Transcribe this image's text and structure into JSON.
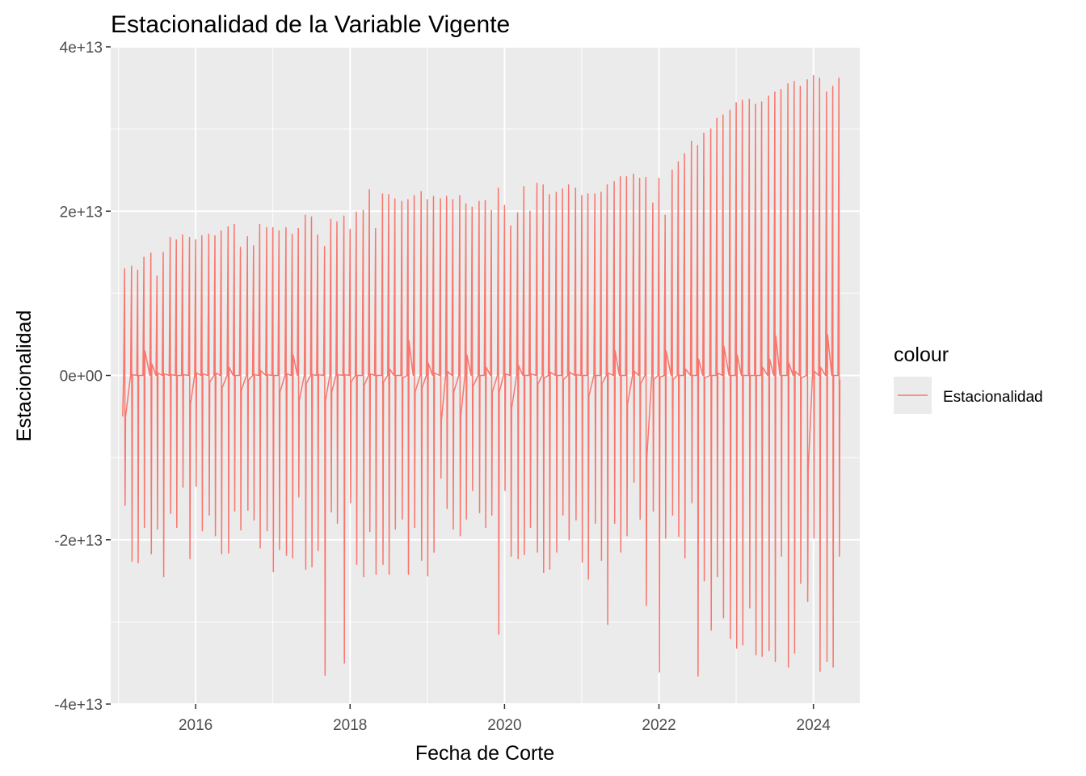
{
  "chart_data": {
    "type": "line",
    "title": "Estacionalidad de la Variable Vigente",
    "xlabel": "Fecha de Corte",
    "ylabel": "Estacionalidad",
    "xlim": [
      2014.9,
      2024.6
    ],
    "ylim": [
      -40000000000000.0,
      40000000000000.0
    ],
    "x_ticks": [
      {
        "value": 2016,
        "label": "2016"
      },
      {
        "value": 2018,
        "label": "2018"
      },
      {
        "value": 2020,
        "label": "2020"
      },
      {
        "value": 2022,
        "label": "2022"
      },
      {
        "value": 2024,
        "label": "2024"
      }
    ],
    "y_ticks": [
      {
        "value": 40000000000000.0,
        "label": "4e+13"
      },
      {
        "value": 20000000000000.0,
        "label": "2e+13"
      },
      {
        "value": 0,
        "label": "0e+00"
      },
      {
        "value": -20000000000000.0,
        "label": "-2e+13"
      },
      {
        "value": -40000000000000.0,
        "label": "-4e+13"
      }
    ],
    "grid": true,
    "legend": {
      "title": "colour",
      "position": "right"
    },
    "series": [
      {
        "name": "Estacionalidad",
        "color": "#F8766D",
        "months": [
          {
            "x": 2015.08,
            "hi": 13.0,
            "lo": -15.8,
            "close": -5.0
          },
          {
            "x": 2015.17,
            "hi": 13.3,
            "lo": -22.6,
            "close": 0.1
          },
          {
            "x": 2015.25,
            "hi": 12.8,
            "lo": -22.8,
            "close": 0.0
          },
          {
            "x": 2015.33,
            "hi": 14.4,
            "lo": -18.5,
            "close": 3.0
          },
          {
            "x": 2015.42,
            "hi": 14.9,
            "lo": -21.7,
            "close": 1.4
          },
          {
            "x": 2015.5,
            "hi": 12.1,
            "lo": -18.7,
            "close": 0.3
          },
          {
            "x": 2015.58,
            "hi": 15.0,
            "lo": -24.5,
            "close": 0.2
          },
          {
            "x": 2015.67,
            "hi": 16.8,
            "lo": -16.8,
            "close": 0.1
          },
          {
            "x": 2015.75,
            "hi": 16.5,
            "lo": -18.5,
            "close": 0.0
          },
          {
            "x": 2015.83,
            "hi": 17.1,
            "lo": -13.6,
            "close": 0.1
          },
          {
            "x": 2015.92,
            "hi": 16.8,
            "lo": -22.3,
            "close": -3.5
          },
          {
            "x": 2016.0,
            "hi": 16.5,
            "lo": -13.5,
            "close": 0.3
          },
          {
            "x": 2016.08,
            "hi": 17.0,
            "lo": -18.9,
            "close": 0.2
          },
          {
            "x": 2016.17,
            "hi": 17.2,
            "lo": -17.0,
            "close": -0.8
          },
          {
            "x": 2016.25,
            "hi": 17.0,
            "lo": -19.5,
            "close": 0.3
          },
          {
            "x": 2016.33,
            "hi": 17.6,
            "lo": -21.7,
            "close": -1.5
          },
          {
            "x": 2016.42,
            "hi": 18.1,
            "lo": -21.6,
            "close": 1.0
          },
          {
            "x": 2016.5,
            "hi": 18.4,
            "lo": -16.5,
            "close": 0.0
          },
          {
            "x": 2016.58,
            "hi": 15.6,
            "lo": -18.8,
            "close": -1.8
          },
          {
            "x": 2016.67,
            "hi": 16.9,
            "lo": -16.4,
            "close": -0.6
          },
          {
            "x": 2016.75,
            "hi": 15.8,
            "lo": -17.6,
            "close": 0.1
          },
          {
            "x": 2016.83,
            "hi": 18.4,
            "lo": -21.0,
            "close": 0.6
          },
          {
            "x": 2016.92,
            "hi": 18.0,
            "lo": -18.9,
            "close": 0.1
          },
          {
            "x": 2017.0,
            "hi": 18.0,
            "lo": -23.9,
            "close": 0.0
          },
          {
            "x": 2017.08,
            "hi": 17.6,
            "lo": -21.2,
            "close": -2.0
          },
          {
            "x": 2017.17,
            "hi": 18.0,
            "lo": -21.9,
            "close": 0.2
          },
          {
            "x": 2017.25,
            "hi": 17.2,
            "lo": -22.2,
            "close": 2.5
          },
          {
            "x": 2017.33,
            "hi": 17.9,
            "lo": -14.8,
            "close": -3.0
          },
          {
            "x": 2017.42,
            "hi": 19.5,
            "lo": -23.6,
            "close": -1.0
          },
          {
            "x": 2017.5,
            "hi": 19.3,
            "lo": -23.3,
            "close": 0.1
          },
          {
            "x": 2017.58,
            "hi": 17.1,
            "lo": -21.3,
            "close": 0.1
          },
          {
            "x": 2017.67,
            "hi": 15.7,
            "lo": -36.5,
            "close": -3.0
          },
          {
            "x": 2017.75,
            "hi": 19.0,
            "lo": -16.6,
            "close": -2.0
          },
          {
            "x": 2017.83,
            "hi": 18.7,
            "lo": -18.0,
            "close": 0.1
          },
          {
            "x": 2017.92,
            "hi": 19.4,
            "lo": -35.0,
            "close": 0.1
          },
          {
            "x": 2018.0,
            "hi": 17.8,
            "lo": -15.5,
            "close": -0.8
          },
          {
            "x": 2018.08,
            "hi": 19.9,
            "lo": -23.0,
            "close": 0.0
          },
          {
            "x": 2018.17,
            "hi": 20.1,
            "lo": -24.5,
            "close": -1.2
          },
          {
            "x": 2018.25,
            "hi": 22.6,
            "lo": -19.0,
            "close": 0.2
          },
          {
            "x": 2018.33,
            "hi": 17.9,
            "lo": -24.2,
            "close": 0.0
          },
          {
            "x": 2018.42,
            "hi": 22.1,
            "lo": -23.0,
            "close": -0.8
          },
          {
            "x": 2018.5,
            "hi": 22.0,
            "lo": -24.2,
            "close": 0.8
          },
          {
            "x": 2018.58,
            "hi": 21.5,
            "lo": -18.7,
            "close": 0.0
          },
          {
            "x": 2018.67,
            "hi": 21.2,
            "lo": -17.5,
            "close": -0.3
          },
          {
            "x": 2018.75,
            "hi": 21.4,
            "lo": -24.2,
            "close": 4.2
          },
          {
            "x": 2018.83,
            "hi": 21.9,
            "lo": -18.5,
            "close": -2.0
          },
          {
            "x": 2018.92,
            "hi": 22.4,
            "lo": -22.5,
            "close": -1.5
          },
          {
            "x": 2019.0,
            "hi": 21.4,
            "lo": -24.4,
            "close": 1.5
          },
          {
            "x": 2019.08,
            "hi": 21.8,
            "lo": -21.5,
            "close": 0.3
          },
          {
            "x": 2019.17,
            "hi": 21.5,
            "lo": -12.5,
            "close": -5.5
          },
          {
            "x": 2019.25,
            "hi": 21.8,
            "lo": -16.2,
            "close": 0.5
          },
          {
            "x": 2019.33,
            "hi": 21.4,
            "lo": -18.7,
            "close": -2.0
          },
          {
            "x": 2019.42,
            "hi": 21.9,
            "lo": -19.5,
            "close": -5.0
          },
          {
            "x": 2019.5,
            "hi": 20.9,
            "lo": -17.5,
            "close": 2.5
          },
          {
            "x": 2019.58,
            "hi": 20.5,
            "lo": -14.0,
            "close": -1.3
          },
          {
            "x": 2019.67,
            "hi": 21.2,
            "lo": -16.7,
            "close": 0.0
          },
          {
            "x": 2019.75,
            "hi": 21.3,
            "lo": -18.5,
            "close": 1.0
          },
          {
            "x": 2019.83,
            "hi": 20.1,
            "lo": -17.0,
            "close": -2.0
          },
          {
            "x": 2019.92,
            "hi": 22.8,
            "lo": -31.5,
            "close": -2.0
          },
          {
            "x": 2020.0,
            "hi": 20.7,
            "lo": -14.0,
            "close": 0.2
          },
          {
            "x": 2020.08,
            "hi": 18.2,
            "lo": -22.0,
            "close": -4.0
          },
          {
            "x": 2020.17,
            "hi": 19.8,
            "lo": -22.3,
            "close": 1.2
          },
          {
            "x": 2020.25,
            "hi": 23.0,
            "lo": -21.8,
            "close": 0.0
          },
          {
            "x": 2020.33,
            "hi": 20.0,
            "lo": -18.5,
            "close": 0.2
          },
          {
            "x": 2020.42,
            "hi": 23.4,
            "lo": -21.5,
            "close": -1.0
          },
          {
            "x": 2020.5,
            "hi": 23.2,
            "lo": -24.0,
            "close": -0.3
          },
          {
            "x": 2020.58,
            "hi": 22.0,
            "lo": -23.6,
            "close": 0.4
          },
          {
            "x": 2020.67,
            "hi": 22.3,
            "lo": -21.5,
            "close": 0.0
          },
          {
            "x": 2020.75,
            "hi": 22.7,
            "lo": -17.0,
            "close": -0.5
          },
          {
            "x": 2020.83,
            "hi": 23.2,
            "lo": -20.0,
            "close": 0.4
          },
          {
            "x": 2020.92,
            "hi": 22.8,
            "lo": -17.6,
            "close": 0.1
          },
          {
            "x": 2021.0,
            "hi": 21.9,
            "lo": -22.7,
            "close": 0.0
          },
          {
            "x": 2021.08,
            "hi": 22.1,
            "lo": -24.8,
            "close": -2.5
          },
          {
            "x": 2021.17,
            "hi": 22.1,
            "lo": -18.0,
            "close": 0.0
          },
          {
            "x": 2021.25,
            "hi": 22.3,
            "lo": -22.5,
            "close": -1.0
          },
          {
            "x": 2021.33,
            "hi": 23.2,
            "lo": -30.3,
            "close": 0.3
          },
          {
            "x": 2021.42,
            "hi": 23.6,
            "lo": -18.0,
            "close": 3.0
          },
          {
            "x": 2021.5,
            "hi": 24.2,
            "lo": -21.5,
            "close": 0.0
          },
          {
            "x": 2021.58,
            "hi": 24.2,
            "lo": -19.5,
            "close": -3.5
          },
          {
            "x": 2021.67,
            "hi": 24.5,
            "lo": -13.0,
            "close": 0.5
          },
          {
            "x": 2021.75,
            "hi": 24.0,
            "lo": -17.5,
            "close": -1.0
          },
          {
            "x": 2021.83,
            "hi": 24.1,
            "lo": -28.0,
            "close": -10.0
          },
          {
            "x": 2021.92,
            "hi": 21.0,
            "lo": -16.5,
            "close": -0.5
          },
          {
            "x": 2022.0,
            "hi": 24.0,
            "lo": -36.1,
            "close": -0.2
          },
          {
            "x": 2022.08,
            "hi": 19.5,
            "lo": -19.8,
            "close": 3.0
          },
          {
            "x": 2022.17,
            "hi": 25.0,
            "lo": -17.0,
            "close": -0.5
          },
          {
            "x": 2022.25,
            "hi": 26.0,
            "lo": -19.6,
            "close": 0.0
          },
          {
            "x": 2022.33,
            "hi": 27.0,
            "lo": -22.2,
            "close": 0.8
          },
          {
            "x": 2022.42,
            "hi": 28.5,
            "lo": -15.5,
            "close": 0.0
          },
          {
            "x": 2022.5,
            "hi": 28.0,
            "lo": -36.6,
            "close": 2.0
          },
          {
            "x": 2022.58,
            "hi": 29.5,
            "lo": -25.0,
            "close": -0.3
          },
          {
            "x": 2022.67,
            "hi": 30.0,
            "lo": -31.0,
            "close": 0.0
          },
          {
            "x": 2022.75,
            "hi": 31.3,
            "lo": -24.5,
            "close": 0.3
          },
          {
            "x": 2022.83,
            "hi": 31.7,
            "lo": -29.5,
            "close": 3.5
          },
          {
            "x": 2022.92,
            "hi": 32.3,
            "lo": -32.0,
            "close": 0.0
          },
          {
            "x": 2023.0,
            "hi": 33.2,
            "lo": -33.2,
            "close": 2.5
          },
          {
            "x": 2023.08,
            "hi": 33.5,
            "lo": -32.8,
            "close": 0.0
          },
          {
            "x": 2023.17,
            "hi": 33.6,
            "lo": -28.3,
            "close": 0.0
          },
          {
            "x": 2023.25,
            "hi": 33.0,
            "lo": -34.0,
            "close": 0.0
          },
          {
            "x": 2023.33,
            "hi": 33.3,
            "lo": -34.2,
            "close": 1.0
          },
          {
            "x": 2023.42,
            "hi": 34.0,
            "lo": -33.5,
            "close": 2.0
          },
          {
            "x": 2023.5,
            "hi": 34.5,
            "lo": -34.8,
            "close": 4.8
          },
          {
            "x": 2023.58,
            "hi": 34.8,
            "lo": -22.0,
            "close": 0.0
          },
          {
            "x": 2023.67,
            "hi": 35.5,
            "lo": -35.5,
            "close": 1.5
          },
          {
            "x": 2023.75,
            "hi": 35.8,
            "lo": -33.8,
            "close": 0.5
          },
          {
            "x": 2023.83,
            "hi": 35.2,
            "lo": -25.3,
            "close": -0.3
          },
          {
            "x": 2023.92,
            "hi": 36.0,
            "lo": -27.5,
            "close": -11.5
          },
          {
            "x": 2024.0,
            "hi": 36.5,
            "lo": -19.8,
            "close": 0.5
          },
          {
            "x": 2024.08,
            "hi": 36.2,
            "lo": -36.0,
            "close": 1.0
          },
          {
            "x": 2024.17,
            "hi": 34.5,
            "lo": -34.8,
            "close": 5.0
          },
          {
            "x": 2024.25,
            "hi": 35.2,
            "lo": -35.5,
            "close": 0.0
          },
          {
            "x": 2024.33,
            "hi": 36.2,
            "lo": -22.0,
            "close": -0.5
          }
        ]
      }
    ]
  }
}
